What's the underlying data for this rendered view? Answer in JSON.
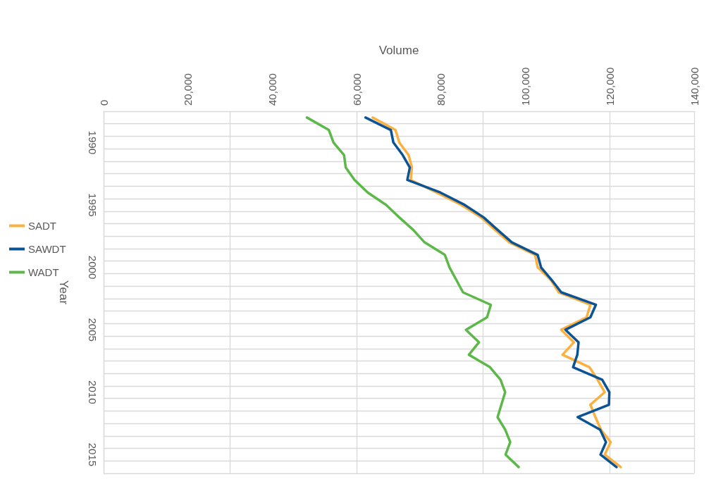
{
  "chart_data": {
    "type": "line",
    "orientation": "horizontal",
    "xlabel": "Volume",
    "ylabel": "Year",
    "categories": [
      null,
      null,
      "1990",
      null,
      null,
      null,
      null,
      "1995",
      null,
      null,
      null,
      null,
      "2000",
      null,
      null,
      null,
      null,
      "2005",
      null,
      null,
      null,
      null,
      "2010",
      null,
      null,
      null,
      null,
      "2015",
      null
    ],
    "series": [
      {
        "name": "SADT",
        "color": "#fbb040",
        "values": [
          63800,
          69200,
          70100,
          72300,
          73100,
          72800,
          78900,
          84800,
          89500,
          92800,
          96200,
          102300,
          102900,
          106000,
          107900,
          115400,
          114500,
          108500,
          111500,
          108800,
          115200,
          117100,
          118800,
          115400,
          116600,
          117900,
          120200,
          118800,
          122600
        ]
      },
      {
        "name": "SAWDT",
        "color": "#0b5394",
        "values": [
          62100,
          68100,
          68700,
          70900,
          72600,
          72000,
          79800,
          85600,
          90100,
          93400,
          96800,
          102900,
          103700,
          106200,
          108500,
          116700,
          115400,
          109500,
          112600,
          112300,
          111300,
          118200,
          119900,
          119800,
          112400,
          117700,
          119100,
          117800,
          121600
        ]
      },
      {
        "name": "WADT",
        "color": "#5bb849",
        "values": [
          48200,
          53400,
          54500,
          57000,
          57400,
          59500,
          62600,
          67000,
          70100,
          73400,
          76100,
          80900,
          82000,
          83600,
          85200,
          91800,
          90900,
          85900,
          89000,
          86600,
          91600,
          94100,
          95200,
          94300,
          93400,
          95200,
          96400,
          95300,
          98400
        ]
      }
    ],
    "xlim": [
      0,
      140000
    ],
    "xticks": [
      0,
      {
        "value": 20000,
        "label": "20,000"
      },
      {
        "value": 40000,
        "label": "40,000"
      },
      {
        "value": 60000,
        "label": "60,000"
      },
      {
        "value": 80000,
        "label": "80,000"
      },
      {
        "value": 100000,
        "label": "100,000"
      },
      {
        "value": 120000,
        "label": "120,000"
      },
      {
        "value": 140000,
        "label": "140,000"
      }
    ],
    "grid": true,
    "legend": "left",
    "marker": "none",
    "line_style": "solid"
  }
}
